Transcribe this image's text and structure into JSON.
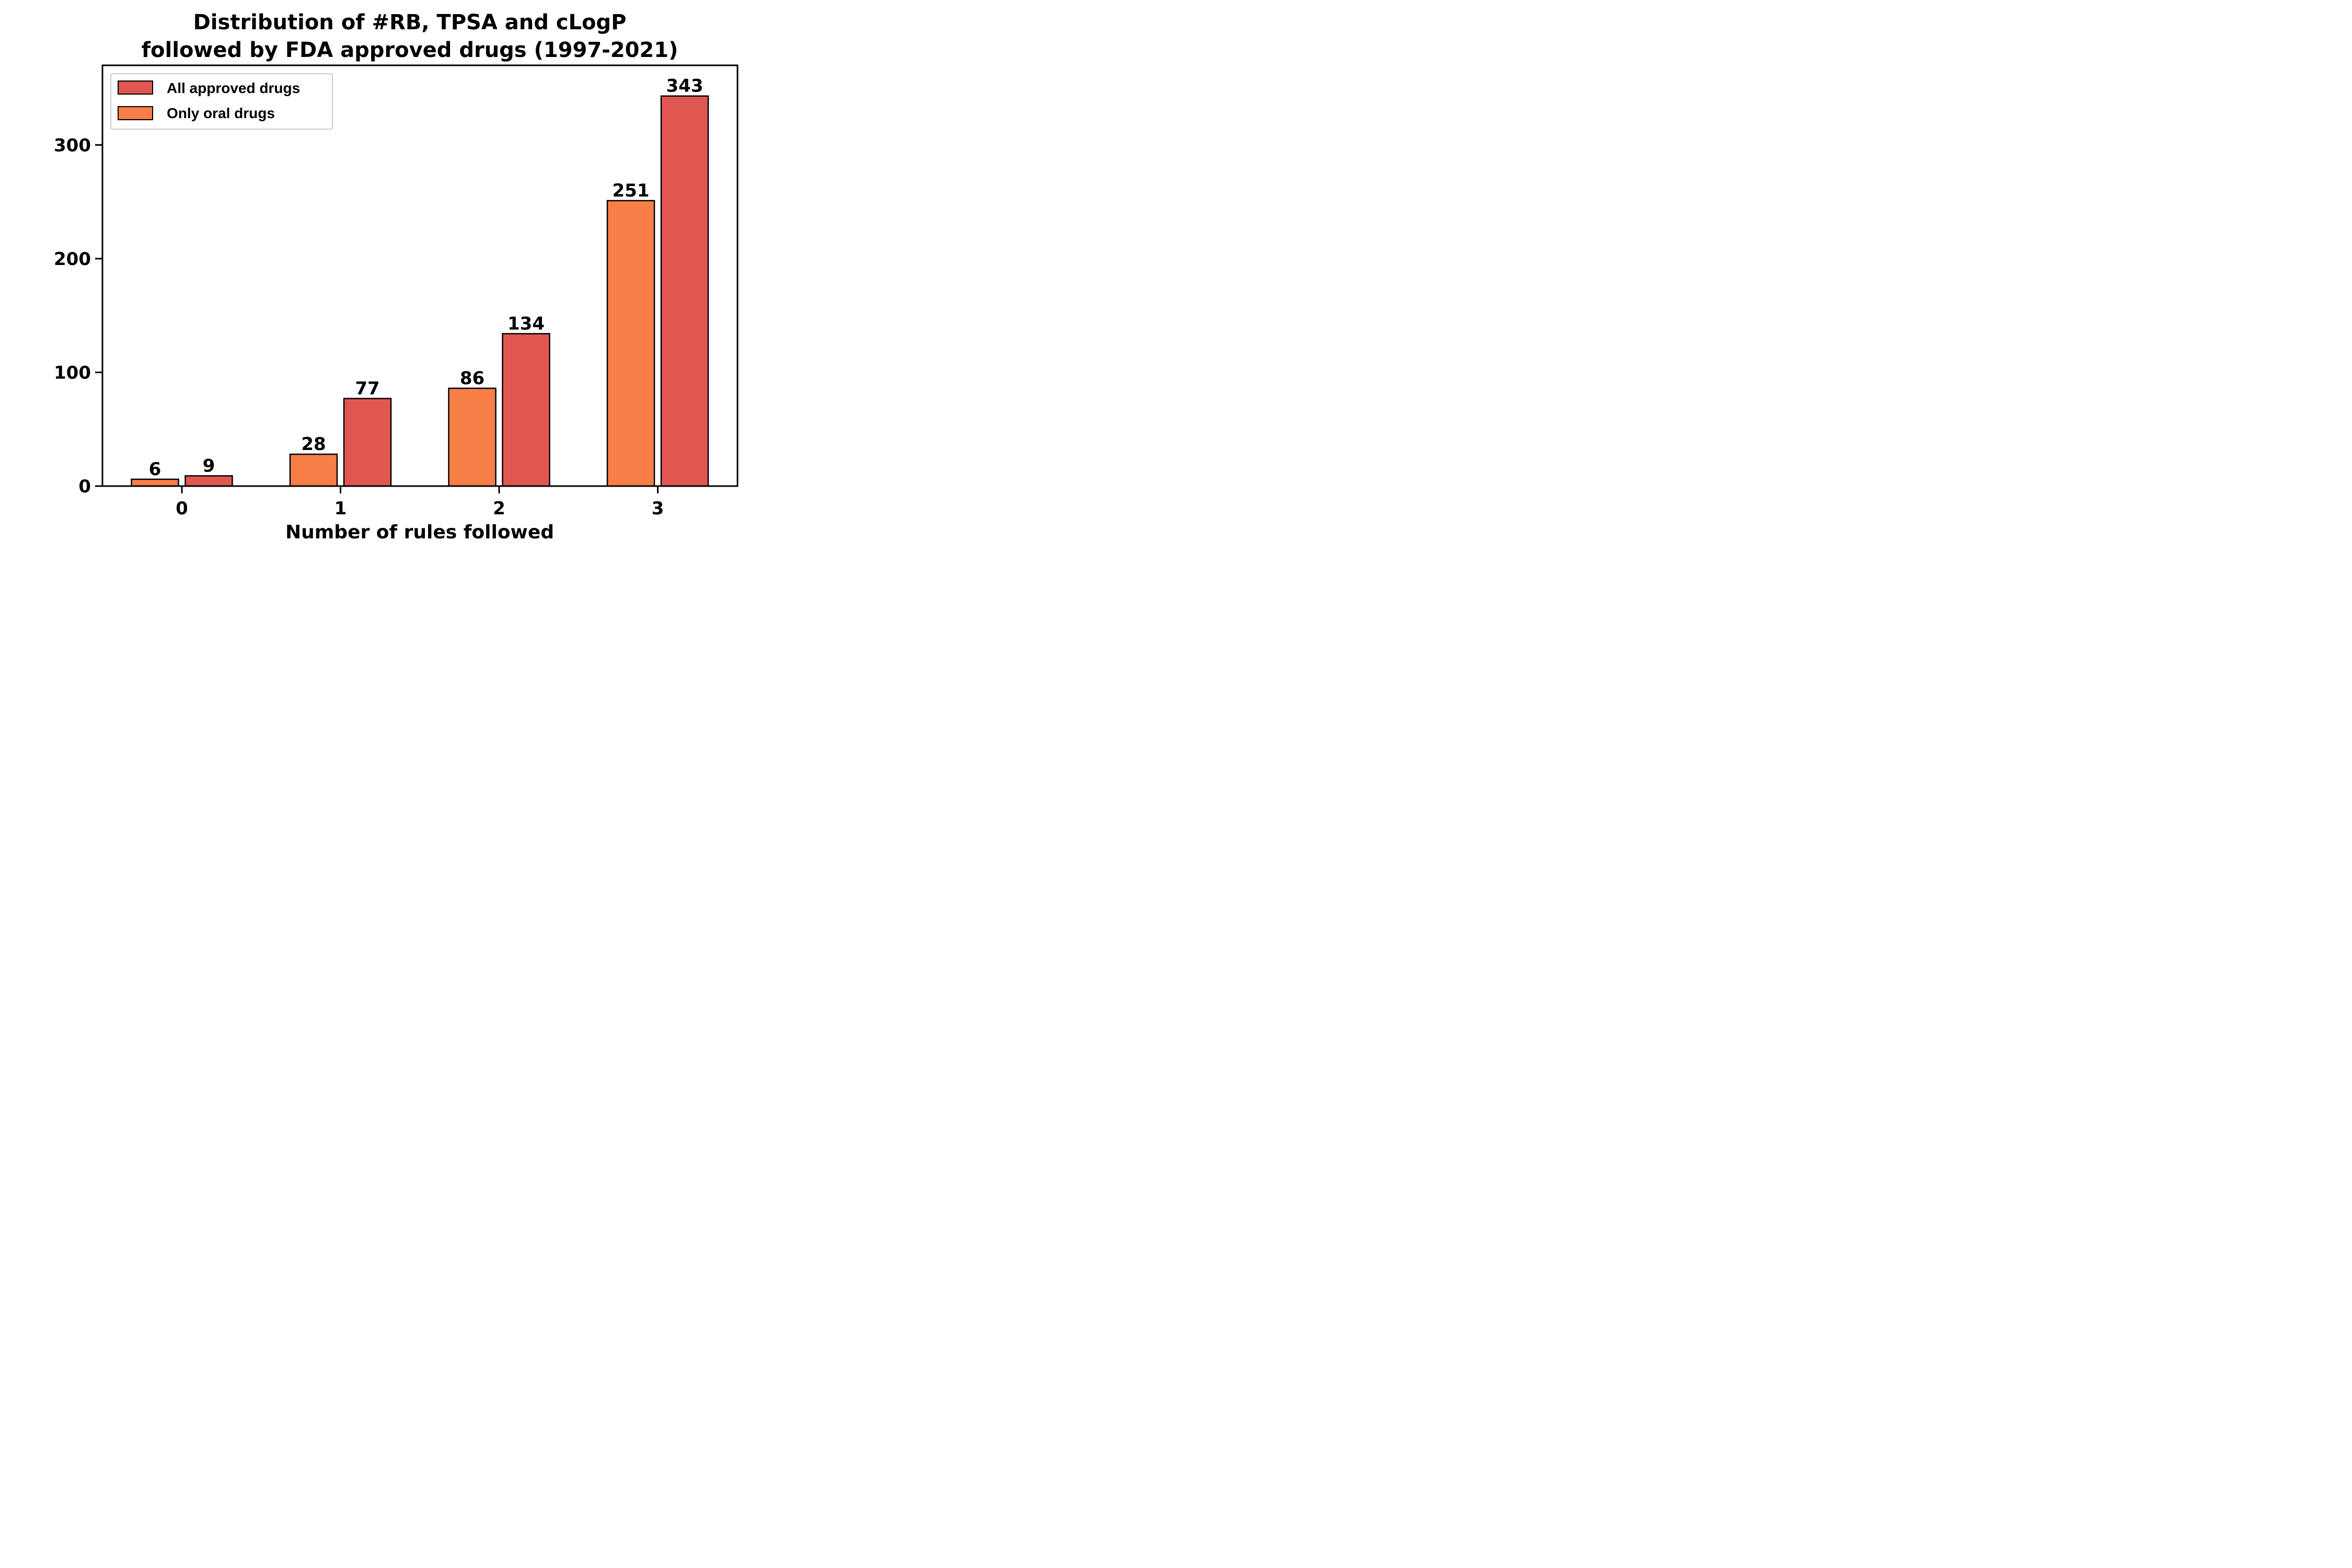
{
  "chart_data": {
    "type": "bar",
    "title_lines": [
      "Distribution of #RB, TPSA and cLogP",
      "followed by FDA approved drugs (1997-2021)"
    ],
    "xlabel": "Number of rules followed",
    "ylabel": "",
    "categories": [
      "0",
      "1",
      "2",
      "3"
    ],
    "series": [
      {
        "name": "Only oral drugs",
        "values": [
          6,
          28,
          86,
          251
        ],
        "color": "#f77f47"
      },
      {
        "name": "All approved drugs",
        "values": [
          9,
          77,
          134,
          343
        ],
        "color": "#e05752"
      }
    ],
    "legend_order": [
      "All approved drugs",
      "Only oral drugs"
    ],
    "legend_position": "top-left",
    "ylim": [
      0,
      370
    ],
    "yticks": [
      0,
      100,
      200,
      300
    ],
    "grid": false
  }
}
